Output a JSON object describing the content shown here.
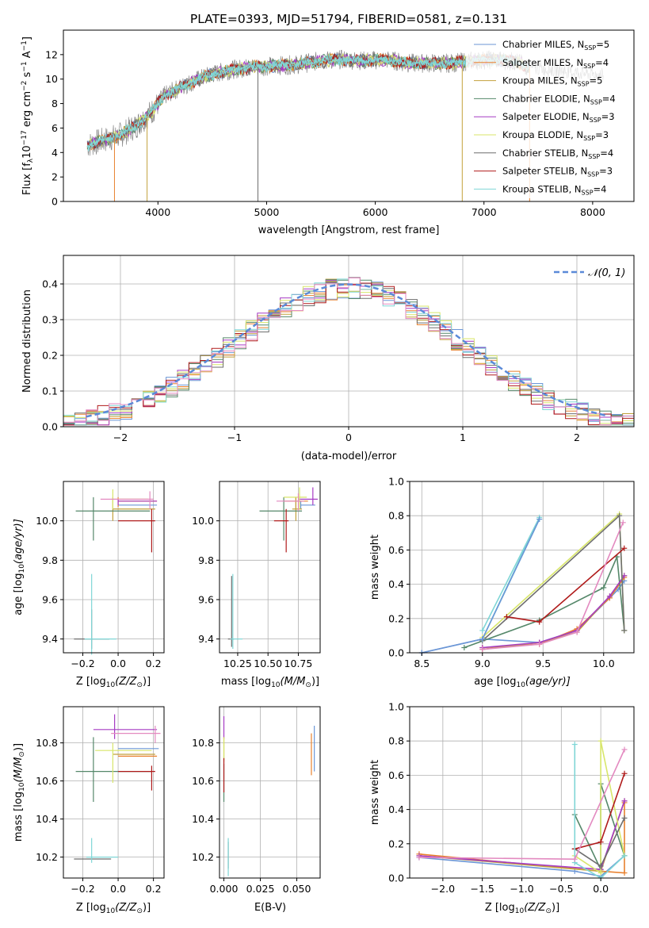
{
  "title": "PLATE=0393, MJD=51794, FIBERID=0581, z=0.131",
  "colors": {
    "chabrier_miles": "#6b96d6",
    "salpeter_miles": "#e8812e",
    "kroupa_miles": "#c2a13c",
    "chabrier_elodie": "#55886a",
    "salpeter_elodie": "#a63bc4",
    "kroupa_elodie": "#d8e66a",
    "chabrier_stelib": "#6e6e6e",
    "salpeter_stelib": "#b01b1b",
    "kroupa_stelib": "#7fd6d6",
    "pink": "#e38ac0",
    "normal": "#5b8ad8"
  },
  "chart_data": [
    {
      "id": "spectrum",
      "type": "line",
      "xlabel": "wavelength [Angstrom, rest frame]",
      "ylabel": "Flux [f",
      "ylabel_sub": "λ",
      "ylabel_rest": "10",
      "ylabel_exp1": "−17",
      "ylabel_rest2": " erg cm",
      "ylabel_exp2": "−2",
      "ylabel_rest3": " s",
      "ylabel_exp3": "−1",
      "ylabel_rest4": " A",
      "ylabel_exp4": "−1",
      "ylabel_end": "]",
      "xlim": [
        3130,
        8380
      ],
      "ylim": [
        0,
        14
      ],
      "xticks": [
        "4000",
        "5000",
        "6000",
        "7000",
        "8000"
      ],
      "xtick_values": [
        4000,
        5000,
        6000,
        7000,
        8000
      ],
      "yticks": [
        "0",
        "2",
        "4",
        "6",
        "8",
        "10",
        "12"
      ],
      "ytick_values": [
        0,
        2,
        4,
        6,
        8,
        10,
        12
      ],
      "grid": false,
      "legend_position": "top-right",
      "legend": [
        {
          "name": "Chabrier MILES, N",
          "sub": "SSP",
          "tail": "=5",
          "color": "#6b96d6"
        },
        {
          "name": "Salpeter MILES, N",
          "sub": "SSP",
          "tail": "=4",
          "color": "#e8812e"
        },
        {
          "name": "Kroupa MILES, N",
          "sub": "SSP",
          "tail": "=5",
          "color": "#c2a13c"
        },
        {
          "name": "Chabrier ELODIE, N",
          "sub": "SSP",
          "tail": "=4",
          "color": "#55886a"
        },
        {
          "name": "Salpeter ELODIE, N",
          "sub": "SSP",
          "tail": "=3",
          "color": "#a63bc4"
        },
        {
          "name": "Kroupa ELODIE, N",
          "sub": "SSP",
          "tail": "=3",
          "color": "#d8e66a"
        },
        {
          "name": "Chabrier STELIB, N",
          "sub": "SSP",
          "tail": "=4",
          "color": "#6e6e6e"
        },
        {
          "name": "Salpeter STELIB, N",
          "sub": "SSP",
          "tail": "=3",
          "color": "#b01b1b"
        },
        {
          "name": "Kroupa STELIB, N",
          "sub": "SSP",
          "tail": "=4",
          "color": "#7fd6d6"
        }
      ],
      "continuum": {
        "x": [
          3350,
          3500,
          3650,
          3800,
          3950,
          4050,
          4200,
          4350,
          4500,
          4700,
          4900,
          5100,
          5300,
          5500,
          5700,
          5900,
          6100,
          6300,
          6500,
          6700,
          6900,
          7100,
          7300,
          7400
        ],
        "y": [
          4.6,
          5.0,
          5.4,
          6.2,
          7.4,
          8.6,
          9.3,
          9.9,
          10.4,
          10.8,
          11.0,
          11.1,
          11.2,
          11.5,
          11.6,
          11.5,
          11.6,
          11.3,
          11.3,
          11.3,
          11.5,
          11.6,
          11.4,
          11.0
        ]
      },
      "data_spike_x": [
        3350,
        8100
      ],
      "model_drop_lines": [
        {
          "x": 3600,
          "color": "#e8812e"
        },
        {
          "x": 3900,
          "color": "#c2a13c"
        },
        {
          "x": 4920,
          "color": "#6e6e6e"
        },
        {
          "x": 6800,
          "color": "#c2a13c"
        },
        {
          "x": 7420,
          "color": "#e8812e"
        }
      ]
    },
    {
      "id": "residuals",
      "type": "area",
      "xlabel": "(data-model)/error",
      "ylabel": "Normed distribution",
      "xlim": [
        -2.5,
        2.5
      ],
      "ylim": [
        0,
        0.48
      ],
      "xticks": [
        "−2",
        "−1",
        "0",
        "1",
        "2"
      ],
      "xtick_values": [
        -2,
        -1,
        0,
        1,
        2
      ],
      "yticks": [
        "0.0",
        "0.1",
        "0.2",
        "0.3",
        "0.4"
      ],
      "ytick_values": [
        0,
        0.1,
        0.2,
        0.3,
        0.4
      ],
      "grid": true,
      "legend_position": "top-right",
      "legend": [
        {
          "name": "𝒩(0, 1)",
          "color": "#5b8ad8",
          "dashed": true
        }
      ],
      "bin_width": 0.1
    },
    {
      "id": "z-age",
      "type": "scatter",
      "xlabel": "Z [log",
      "xlabel_sub": "10",
      "xlabel_mid": "(Z/Z",
      "xlabel_sub2": "⊙",
      "xlabel_end": ")]",
      "ylabel": "age  [log",
      "ylabel_sub": "10",
      "ylabel_end": "(age/yr)]",
      "xlim": [
        -0.31,
        0.26
      ],
      "ylim": [
        9.33,
        10.2
      ],
      "xticks": [
        "−0.2",
        "0.0",
        "0.2"
      ],
      "xtick_values": [
        -0.2,
        0,
        0.2
      ],
      "yticks": [
        "9.4",
        "9.6",
        "9.8",
        "10.0"
      ],
      "ytick_values": [
        9.4,
        9.6,
        9.8,
        10.0
      ],
      "grid": true
    },
    {
      "id": "mass-age",
      "type": "scatter",
      "xlabel": "mass [log",
      "xlabel_sub": "10",
      "xlabel_mid": "(M/M",
      "xlabel_sub2": "⊙",
      "xlabel_end": ")]",
      "xlim": [
        10.1,
        10.93
      ],
      "ylim": [
        9.33,
        10.2
      ],
      "xticks": [
        "10.25",
        "10.50",
        "10.75"
      ],
      "xtick_values": [
        10.25,
        10.5,
        10.75
      ],
      "yticks": [
        "9.4",
        "9.6",
        "9.8",
        "10.0"
      ],
      "ytick_values": [
        9.4,
        9.6,
        9.8,
        10.0
      ],
      "grid": true
    },
    {
      "id": "age-weight",
      "type": "line",
      "xlabel": "age  [log",
      "xlabel_sub": "10",
      "xlabel_end": "(age/yr)]",
      "ylabel": "mass weight",
      "xlim": [
        8.4,
        10.25
      ],
      "ylim": [
        0,
        1
      ],
      "xticks": [
        "8.5",
        "9.0",
        "9.5",
        "10.0"
      ],
      "xtick_values": [
        8.5,
        9.0,
        9.5,
        10.0
      ],
      "yticks": [
        "0.0",
        "0.2",
        "0.4",
        "0.6",
        "0.8",
        "1.0"
      ],
      "ytick_values": [
        0,
        0.2,
        0.4,
        0.6,
        0.8,
        1.0
      ],
      "grid": true,
      "series": [
        {
          "color": "#6b96d6",
          "x": [
            8.5,
            9.0,
            9.47,
            9.78,
            10.05,
            10.12,
            10.17
          ],
          "y": [
            0.0,
            0.08,
            0.06,
            0.13,
            0.32,
            0.37,
            0.42
          ]
        },
        {
          "color": "#e8812e",
          "x": [
            9.0,
            9.47,
            9.78,
            10.05,
            10.17
          ],
          "y": [
            0.03,
            0.05,
            0.14,
            0.32,
            0.44
          ]
        },
        {
          "color": "#c2a13c",
          "x": [
            9.0,
            9.47,
            9.78,
            10.05,
            10.17
          ],
          "y": [
            0.02,
            0.06,
            0.12,
            0.33,
            0.45
          ]
        },
        {
          "color": "#55886a",
          "x": [
            8.85,
            9.47,
            10.0,
            10.11,
            10.17
          ],
          "y": [
            0.03,
            0.19,
            0.38,
            0.56,
            0.13
          ]
        },
        {
          "color": "#a63bc4",
          "x": [
            9.0,
            9.47,
            9.78,
            10.05,
            10.17
          ],
          "y": [
            0.03,
            0.06,
            0.13,
            0.33,
            0.45
          ]
        },
        {
          "color": "#d8e66a",
          "x": [
            9.0,
            10.13,
            10.17
          ],
          "y": [
            0.09,
            0.81,
            0.13
          ]
        },
        {
          "color": "#6e6e6e",
          "x": [
            9.0,
            10.13,
            10.17
          ],
          "y": [
            0.07,
            0.8,
            0.13
          ]
        },
        {
          "color": "#b01b1b",
          "x": [
            9.2,
            9.47,
            10.17
          ],
          "y": [
            0.21,
            0.18,
            0.61
          ]
        },
        {
          "color": "#7fd6d6",
          "x": [
            9.0,
            9.47,
            9.0,
            9.47
          ],
          "y": [
            0.13,
            0.79,
            0.08,
            0.78
          ]
        },
        {
          "color": "#e38ac0",
          "x": [
            9.0,
            9.47,
            9.78,
            10.16
          ],
          "y": [
            0.02,
            0.05,
            0.12,
            0.76
          ]
        },
        {
          "color": "#6b96d6",
          "x": [
            8.5,
            9.0,
            9.47
          ],
          "y": [
            0.0,
            0.08,
            0.78
          ]
        }
      ]
    },
    {
      "id": "z-mass",
      "type": "scatter",
      "xlabel": "Z [log",
      "xlabel_sub": "10",
      "xlabel_mid": "(Z/Z",
      "xlabel_sub2": "⊙",
      "xlabel_end": ")]",
      "ylabel": "mass [log",
      "ylabel_sub": "10",
      "ylabel_mid": "(M/M",
      "ylabel_sub2": "⊙",
      "ylabel_end": ")]",
      "xlim": [
        -0.31,
        0.26
      ],
      "ylim": [
        10.09,
        10.99
      ],
      "xticks": [
        "−0.2",
        "0.0",
        "0.2"
      ],
      "xtick_values": [
        -0.2,
        0,
        0.2
      ],
      "yticks": [
        "10.2",
        "10.4",
        "10.6",
        "10.8"
      ],
      "ytick_values": [
        10.2,
        10.4,
        10.6,
        10.8
      ],
      "grid": true
    },
    {
      "id": "ebv-mass",
      "type": "scatter",
      "xlabel": "E(B-V)",
      "xlim": [
        -0.003,
        0.066
      ],
      "ylim": [
        10.09,
        10.99
      ],
      "xticks": [
        "0.000",
        "0.025",
        "0.050"
      ],
      "xtick_values": [
        0,
        0.025,
        0.05
      ],
      "yticks": [
        "10.2",
        "10.4",
        "10.6",
        "10.8"
      ],
      "ytick_values": [
        10.2,
        10.4,
        10.6,
        10.8
      ],
      "grid": true
    },
    {
      "id": "z-weight",
      "type": "line",
      "xlabel": "Z [log",
      "xlabel_sub": "10",
      "xlabel_mid": "(Z/Z",
      "xlabel_sub2": "⊙",
      "xlabel_end": ")]",
      "ylabel": "mass weight",
      "xlim": [
        -2.42,
        0.42
      ],
      "ylim": [
        0,
        1
      ],
      "xticks": [
        "−2.0",
        "−1.5",
        "−1.0",
        "−0.5",
        "0.0"
      ],
      "xtick_values": [
        -2.0,
        -1.5,
        -1.0,
        -0.5,
        0.0
      ],
      "yticks": [
        "0.0",
        "0.2",
        "0.4",
        "0.6",
        "0.8",
        "1.0"
      ],
      "ytick_values": [
        0,
        0.2,
        0.4,
        0.6,
        0.8,
        1.0
      ],
      "grid": true,
      "series": [
        {
          "color": "#6b96d6",
          "x": [
            -2.3,
            -0.33,
            0.0,
            0.3
          ],
          "y": [
            0.12,
            0.04,
            0.01,
            0.13
          ]
        },
        {
          "color": "#e8812e",
          "x": [
            -2.3,
            0.0,
            0.3,
            0.3
          ],
          "y": [
            0.14,
            0.04,
            0.03,
            0.44
          ]
        },
        {
          "color": "#c2a13c",
          "x": [
            -2.3,
            0.0,
            0.3
          ],
          "y": [
            0.13,
            0.04,
            0.45
          ]
        },
        {
          "color": "#55886a",
          "x": [
            -0.33,
            0.0,
            0.0,
            0.3
          ],
          "y": [
            0.37,
            0.05,
            0.55,
            0.13
          ]
        },
        {
          "color": "#a63bc4",
          "x": [
            -2.3,
            0.0,
            0.3
          ],
          "y": [
            0.13,
            0.05,
            0.45
          ]
        },
        {
          "color": "#d8e66a",
          "x": [
            -0.33,
            0.0,
            0.0,
            0.3
          ],
          "y": [
            0.13,
            0.03,
            0.8,
            0.13
          ]
        },
        {
          "color": "#6e6e6e",
          "x": [
            -0.33,
            0.0,
            0.3
          ],
          "y": [
            0.17,
            0.07,
            0.35
          ]
        },
        {
          "color": "#b01b1b",
          "x": [
            -0.33,
            0.0,
            0.3
          ],
          "y": [
            0.17,
            0.21,
            0.61
          ]
        },
        {
          "color": "#7fd6d6",
          "x": [
            -0.33,
            -0.33,
            0.0,
            0.3
          ],
          "y": [
            0.78,
            0.09,
            0.0,
            0.13
          ]
        },
        {
          "color": "#e38ac0",
          "x": [
            -2.3,
            -0.33,
            0.3
          ],
          "y": [
            0.12,
            0.11,
            0.75
          ]
        }
      ]
    }
  ]
}
